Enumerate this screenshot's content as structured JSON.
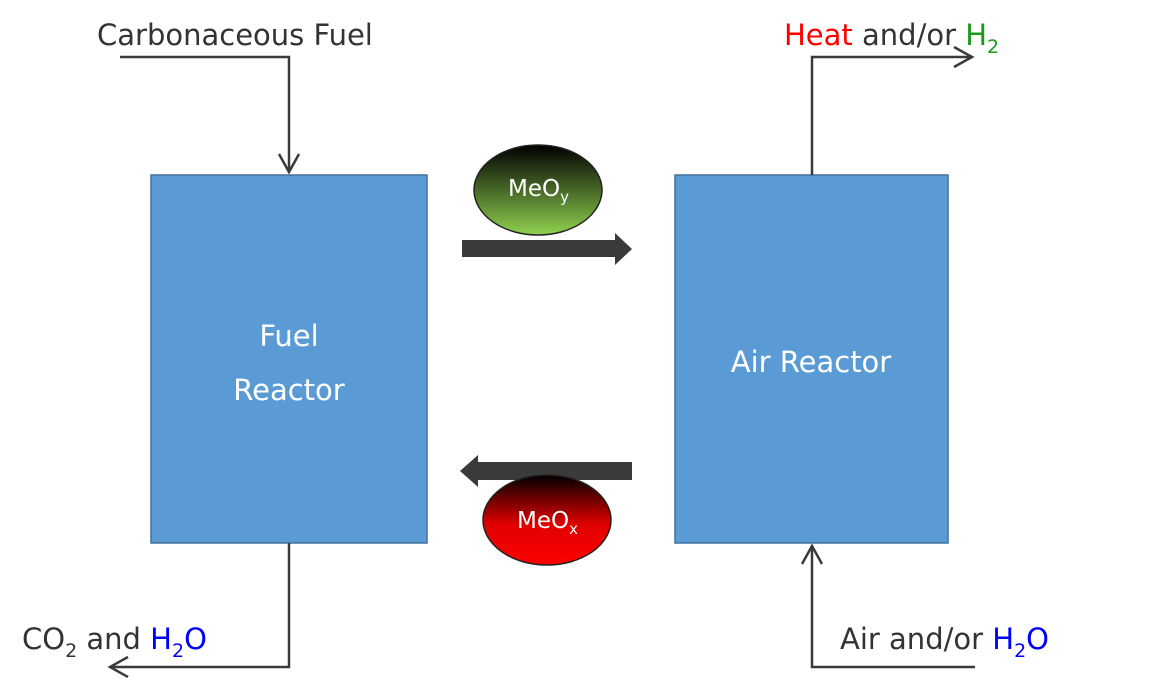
{
  "fuel_reactor": {
    "label": [
      "Fuel",
      "Reactor"
    ]
  },
  "air_reactor": {
    "label": "Air Reactor"
  },
  "fuel_input": {
    "label": "Carbonaceous Fuel"
  },
  "air_output": {
    "label": [
      "Heat",
      " and/or ",
      "H",
      "2"
    ]
  },
  "fuel_output": {
    "label": [
      "CO",
      "2",
      " and ",
      "H",
      "2",
      "O"
    ]
  },
  "air_input": {
    "label": [
      "Air and/or ",
      "H",
      "2",
      "O"
    ]
  },
  "oxidized_carrier": {
    "label": [
      "MeO",
      "y"
    ]
  },
  "reduced_carrier": {
    "label": [
      "MeO",
      "x"
    ]
  }
}
